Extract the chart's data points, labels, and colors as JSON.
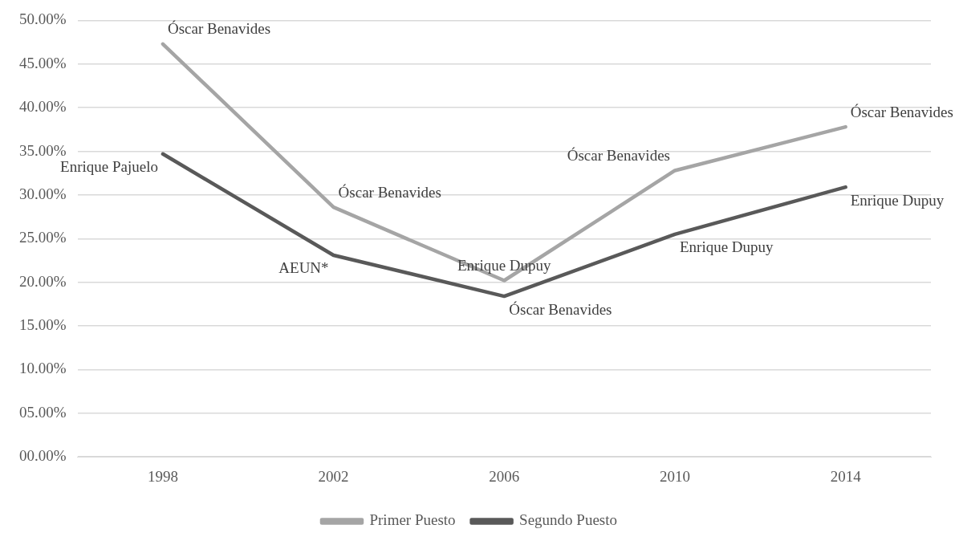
{
  "chart_data": {
    "type": "line",
    "categories": [
      "1998",
      "2002",
      "2006",
      "2010",
      "2014"
    ],
    "series": [
      {
        "name": "Primer Puesto",
        "color": "#a5a5a5",
        "values": [
          47.3,
          28.6,
          20.2,
          32.8,
          37.8
        ]
      },
      {
        "name": "Segundo Puesto",
        "color": "#595959",
        "values": [
          34.7,
          23.1,
          18.4,
          25.5,
          30.9
        ]
      }
    ],
    "ylim": [
      0,
      50
    ],
    "yticks": [
      {
        "value": 0,
        "label": "00.00%"
      },
      {
        "value": 5,
        "label": "05.00%"
      },
      {
        "value": 10,
        "label": "10.00%"
      },
      {
        "value": 15,
        "label": "15.00%"
      },
      {
        "value": 20,
        "label": "20.00%"
      },
      {
        "value": 25,
        "label": "25.00%"
      },
      {
        "value": 30,
        "label": "30.00%"
      },
      {
        "value": 35,
        "label": "35.00%"
      },
      {
        "value": 40,
        "label": "40.00%"
      },
      {
        "value": 45,
        "label": "45.00%"
      },
      {
        "value": 50,
        "label": "50.00%"
      }
    ],
    "grid": "y",
    "legend": "bottom",
    "marker": "none",
    "line_style": "solid",
    "annotations": [
      {
        "text": "Óscar Benavides",
        "x": "1998",
        "y": 47.3
      },
      {
        "text": "Enrique Pajuelo",
        "x": "1998",
        "y": 34.7
      },
      {
        "text": "Óscar Benavides",
        "x": "2002",
        "y": 28.6
      },
      {
        "text": "AEUN*",
        "x": "2002",
        "y": 23.1
      },
      {
        "text": "Enrique Dupuy",
        "x": "2006",
        "y": 20.2
      },
      {
        "text": "Óscar Benavides",
        "x": "2006",
        "y": 18.4
      },
      {
        "text": "Óscar Benavides",
        "x": "2010",
        "y": 32.8
      },
      {
        "text": "Enrique Dupuy",
        "x": "2010",
        "y": 25.5
      },
      {
        "text": "Óscar Benavides",
        "x": "2014",
        "y": 37.8
      },
      {
        "text": "Enrique Dupuy",
        "x": "2014",
        "y": 30.9
      }
    ]
  }
}
